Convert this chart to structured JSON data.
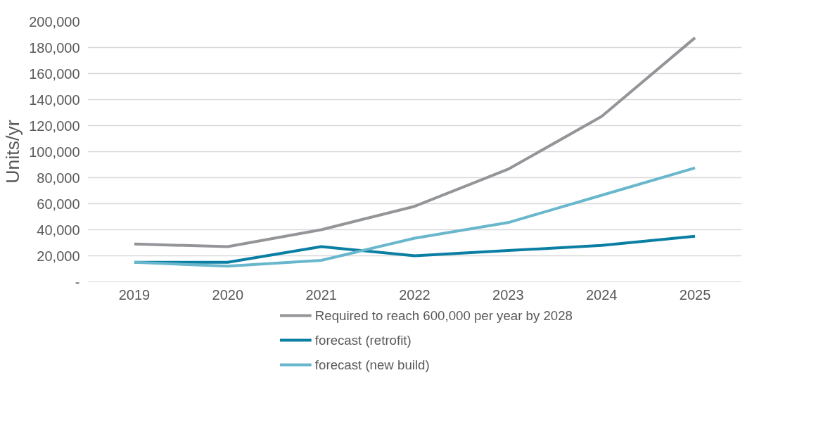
{
  "chart_data": {
    "type": "line",
    "ylabel": "Units/yr",
    "categories": [
      "2019",
      "2020",
      "2021",
      "2022",
      "2023",
      "2024",
      "2025"
    ],
    "series": [
      {
        "name": "Required to reach 600,000 per year by 2028",
        "color": "#939598",
        "values": [
          29000,
          27000,
          40000,
          58000,
          86500,
          127000,
          187500
        ]
      },
      {
        "name": "forecast (retrofit)",
        "color": "#0a7fa3",
        "values": [
          15000,
          15000,
          27000,
          20000,
          24000,
          28000,
          35000
        ]
      },
      {
        "name": "forecast (new build)",
        "color": "#69b7cc",
        "values": [
          15000,
          12000,
          16500,
          33500,
          45500,
          66500,
          87500
        ]
      }
    ],
    "ylim": [
      0,
      200000
    ],
    "yticks": [
      {
        "value": 0,
        "label": "-"
      },
      {
        "value": 20000,
        "label": "20,000"
      },
      {
        "value": 40000,
        "label": "40,000"
      },
      {
        "value": 60000,
        "label": "60,000"
      },
      {
        "value": 80000,
        "label": "80,000"
      },
      {
        "value": 100000,
        "label": "100,000"
      },
      {
        "value": 120000,
        "label": "120,000"
      },
      {
        "value": 140000,
        "label": "140,000"
      },
      {
        "value": 160000,
        "label": "160,000"
      },
      {
        "value": 180000,
        "label": "180,000"
      },
      {
        "value": 200000,
        "label": "200,000"
      }
    ],
    "grid": "y",
    "legend": "bottom",
    "marker": "none",
    "line_style": "solid"
  }
}
